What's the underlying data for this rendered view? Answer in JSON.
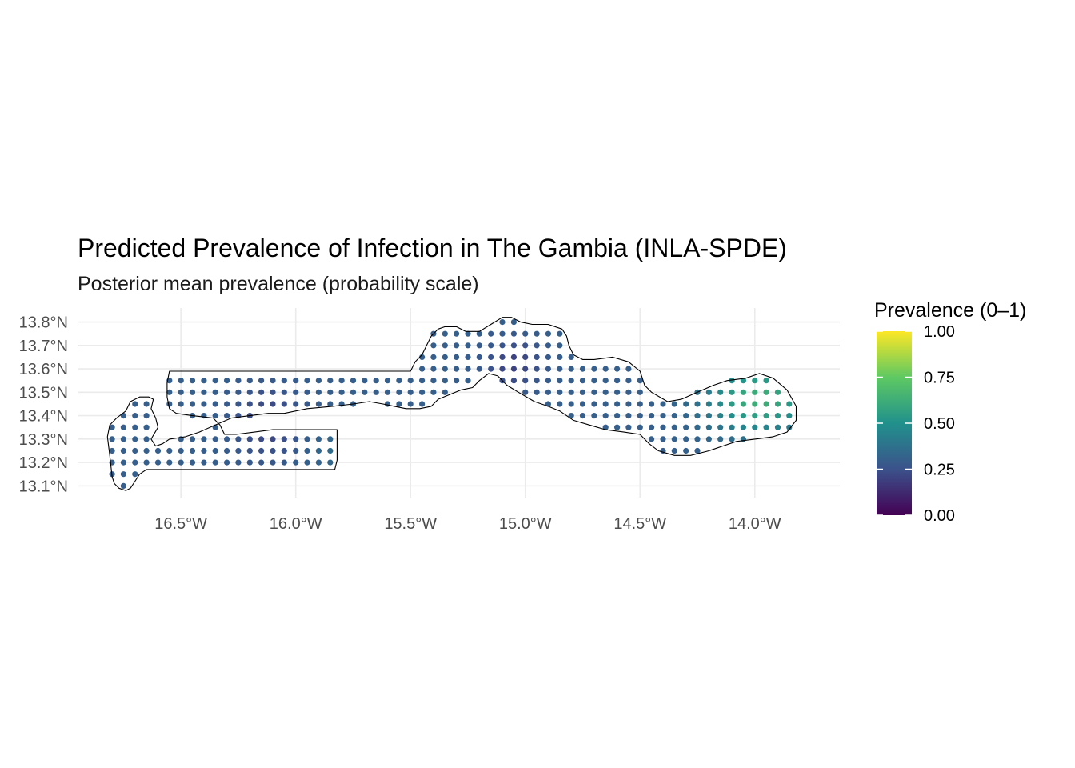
{
  "title": "Predicted Prevalence of Infection in The Gambia (INLA-SPDE)",
  "subtitle": "Posterior mean prevalence (probability scale)",
  "legend": {
    "title": "Prevalence (0–1)",
    "ticks": [
      "1.00",
      "0.75",
      "0.50",
      "0.25",
      "0.00"
    ],
    "colors": [
      "#fde725",
      "#5ec962",
      "#21918c",
      "#3b528b",
      "#440154"
    ]
  },
  "chart_data": {
    "type": "map-points",
    "x_ticks": [
      {
        "lon": -16.5,
        "label": "16.5°W"
      },
      {
        "lon": -16.0,
        "label": "16.0°W"
      },
      {
        "lon": -15.5,
        "label": "15.5°W"
      },
      {
        "lon": -15.0,
        "label": "15.0°W"
      },
      {
        "lon": -14.5,
        "label": "14.5°W"
      },
      {
        "lon": -14.0,
        "label": "14.0°W"
      }
    ],
    "y_ticks": [
      {
        "lat": 13.8,
        "label": "13.8°N"
      },
      {
        "lat": 13.7,
        "label": "13.7°N"
      },
      {
        "lat": 13.6,
        "label": "13.6°N"
      },
      {
        "lat": 13.5,
        "label": "13.5°N"
      },
      {
        "lat": 13.4,
        "label": "13.4°N"
      },
      {
        "lat": 13.3,
        "label": "13.3°N"
      },
      {
        "lat": 13.2,
        "label": "13.2°N"
      },
      {
        "lat": 13.1,
        "label": "13.1°N"
      }
    ],
    "xlim": [
      -16.95,
      -13.63
    ],
    "ylim": [
      13.05,
      13.86
    ],
    "grid_step": [
      0.05,
      0.05
    ],
    "value_range": [
      0,
      1
    ],
    "boundary": [
      [
        -16.8,
        13.14
      ],
      [
        -16.79,
        13.11
      ],
      [
        -16.77,
        13.09
      ],
      [
        -16.74,
        13.08
      ],
      [
        -16.72,
        13.09
      ],
      [
        -16.7,
        13.12
      ],
      [
        -16.68,
        13.15
      ],
      [
        -16.65,
        13.17
      ],
      [
        -16.55,
        13.17
      ],
      [
        -16.4,
        13.17
      ],
      [
        -16.2,
        13.17
      ],
      [
        -16.0,
        13.17
      ],
      [
        -15.83,
        13.17
      ],
      [
        -15.82,
        13.21
      ],
      [
        -15.82,
        13.34
      ],
      [
        -16.1,
        13.34
      ],
      [
        -16.18,
        13.33
      ],
      [
        -16.26,
        13.32
      ],
      [
        -16.31,
        13.32
      ],
      [
        -16.33,
        13.36
      ],
      [
        -16.36,
        13.39
      ],
      [
        -16.45,
        13.4
      ],
      [
        -16.52,
        13.41
      ],
      [
        -16.55,
        13.43
      ],
      [
        -16.56,
        13.48
      ],
      [
        -16.56,
        13.54
      ],
      [
        -16.55,
        13.59
      ],
      [
        -16.4,
        13.59
      ],
      [
        -16.2,
        13.59
      ],
      [
        -15.9,
        13.59
      ],
      [
        -15.6,
        13.59
      ],
      [
        -15.5,
        13.59
      ],
      [
        -15.48,
        13.63
      ],
      [
        -15.45,
        13.66
      ],
      [
        -15.43,
        13.7
      ],
      [
        -15.41,
        13.74
      ],
      [
        -15.38,
        13.77
      ],
      [
        -15.35,
        13.78
      ],
      [
        -15.3,
        13.78
      ],
      [
        -15.26,
        13.76
      ],
      [
        -15.2,
        13.76
      ],
      [
        -15.15,
        13.79
      ],
      [
        -15.1,
        13.82
      ],
      [
        -15.06,
        13.82
      ],
      [
        -15.02,
        13.8
      ],
      [
        -14.97,
        13.79
      ],
      [
        -14.9,
        13.79
      ],
      [
        -14.84,
        13.77
      ],
      [
        -14.82,
        13.74
      ],
      [
        -14.81,
        13.7
      ],
      [
        -14.79,
        13.66
      ],
      [
        -14.75,
        13.64
      ],
      [
        -14.7,
        13.64
      ],
      [
        -14.62,
        13.65
      ],
      [
        -14.55,
        13.63
      ],
      [
        -14.5,
        13.59
      ],
      [
        -14.48,
        13.53
      ],
      [
        -14.45,
        13.5
      ],
      [
        -14.38,
        13.46
      ],
      [
        -14.32,
        13.47
      ],
      [
        -14.25,
        13.5
      ],
      [
        -14.18,
        13.53
      ],
      [
        -14.12,
        13.55
      ],
      [
        -14.04,
        13.56
      ],
      [
        -13.98,
        13.58
      ],
      [
        -13.92,
        13.56
      ],
      [
        -13.86,
        13.51
      ],
      [
        -13.82,
        13.44
      ],
      [
        -13.82,
        13.38
      ],
      [
        -13.86,
        13.33
      ],
      [
        -13.92,
        13.31
      ],
      [
        -14.0,
        13.3
      ],
      [
        -14.08,
        13.29
      ],
      [
        -14.14,
        13.27
      ],
      [
        -14.2,
        13.25
      ],
      [
        -14.28,
        13.23
      ],
      [
        -14.35,
        13.23
      ],
      [
        -14.42,
        13.25
      ],
      [
        -14.46,
        13.28
      ],
      [
        -14.5,
        13.32
      ],
      [
        -14.57,
        13.33
      ],
      [
        -14.65,
        13.34
      ],
      [
        -14.72,
        13.36
      ],
      [
        -14.79,
        13.38
      ],
      [
        -14.85,
        13.42
      ],
      [
        -14.9,
        13.44
      ],
      [
        -14.96,
        13.46
      ],
      [
        -15.03,
        13.5
      ],
      [
        -15.08,
        13.53
      ],
      [
        -15.12,
        13.57
      ],
      [
        -15.16,
        13.58
      ],
      [
        -15.2,
        13.55
      ],
      [
        -15.23,
        13.52
      ],
      [
        -15.28,
        13.51
      ],
      [
        -15.33,
        13.49
      ],
      [
        -15.38,
        13.47
      ],
      [
        -15.41,
        13.44
      ],
      [
        -15.46,
        13.43
      ],
      [
        -15.52,
        13.43
      ],
      [
        -15.57,
        13.44
      ],
      [
        -15.62,
        13.45
      ],
      [
        -15.68,
        13.46
      ],
      [
        -15.75,
        13.45
      ],
      [
        -15.84,
        13.44
      ],
      [
        -15.95,
        13.43
      ],
      [
        -16.05,
        13.41
      ],
      [
        -16.12,
        13.41
      ],
      [
        -16.2,
        13.4
      ],
      [
        -16.28,
        13.39
      ],
      [
        -16.35,
        13.36
      ],
      [
        -16.42,
        13.33
      ],
      [
        -16.48,
        13.31
      ],
      [
        -16.55,
        13.3
      ],
      [
        -16.58,
        13.28
      ],
      [
        -16.61,
        13.27
      ],
      [
        -16.63,
        13.3
      ],
      [
        -16.6,
        13.35
      ],
      [
        -16.61,
        13.39
      ],
      [
        -16.63,
        13.43
      ],
      [
        -16.62,
        13.47
      ],
      [
        -16.64,
        13.48
      ],
      [
        -16.68,
        13.48
      ],
      [
        -16.72,
        13.46
      ],
      [
        -16.74,
        13.42
      ],
      [
        -16.78,
        13.39
      ],
      [
        -16.81,
        13.36
      ],
      [
        -16.82,
        13.31
      ],
      [
        -16.81,
        13.23
      ],
      [
        -16.8,
        13.14
      ]
    ],
    "outline_color": "#000000",
    "point_style": "dot"
  }
}
